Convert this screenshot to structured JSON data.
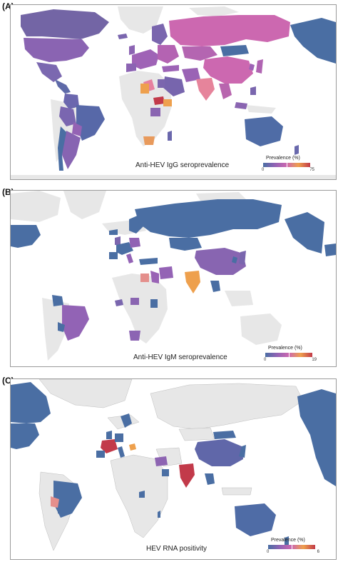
{
  "colors": {
    "land_nodata": "#e7e7e7",
    "water": "#ffffff",
    "blue": "#4a6ea3",
    "purple": "#9263b5",
    "pink": "#cc68b0",
    "red": "#c23a4a",
    "orange": "#eea04d",
    "salmon": "#e48f8c"
  },
  "panels": [
    {
      "label": "(A)",
      "caption": "Anti-HEV IgG seroprevalence",
      "legend": {
        "title": "Prevalence  (%)",
        "min": "0",
        "max": "75"
      }
    },
    {
      "label": "(B)",
      "caption": "Anti-HEV IgM seroprevalence",
      "legend": {
        "title": "Prevalence  (%)",
        "min": "0",
        "max": "19"
      }
    },
    {
      "label": "(C)",
      "caption": "HEV RNA positivity",
      "legend": {
        "title": "Prevalence  (%)",
        "min": "0",
        "max": "6"
      }
    }
  ]
}
